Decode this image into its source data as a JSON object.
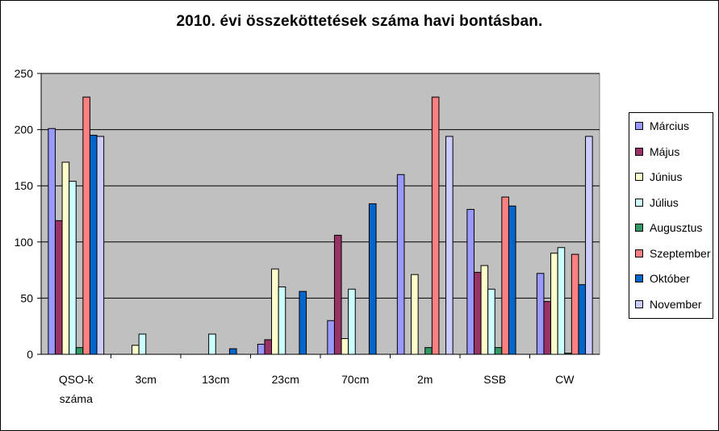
{
  "chart_data": {
    "type": "bar",
    "title": "2010. évi összeköttetések száma havi bontásban.",
    "categories": [
      [
        "QSO-k",
        "száma"
      ],
      [
        "3cm"
      ],
      [
        "13cm"
      ],
      [
        "23cm"
      ],
      [
        "70cm"
      ],
      [
        "2m"
      ],
      [
        "SSB"
      ],
      [
        "CW"
      ]
    ],
    "ylim": [
      0,
      250
    ],
    "yticks": [
      0,
      50,
      100,
      150,
      200,
      250
    ],
    "grid": true,
    "legend_position": "right",
    "plot_background": "#c0c0c0",
    "series": [
      {
        "name": "Március",
        "color": "#9999ff",
        "values": [
          201,
          0,
          0,
          9,
          30,
          160,
          129,
          72
        ]
      },
      {
        "name": "Május",
        "color": "#993366",
        "values": [
          119,
          0,
          0,
          13,
          106,
          0,
          73,
          47
        ]
      },
      {
        "name": "Június",
        "color": "#ffffcc",
        "values": [
          171,
          8,
          0,
          76,
          14,
          71,
          79,
          90
        ]
      },
      {
        "name": "Július",
        "color": "#ccffff",
        "values": [
          154,
          18,
          18,
          60,
          58,
          0,
          58,
          95
        ]
      },
      {
        "name": "Augusztus",
        "color": "#339966",
        "values": [
          6,
          0,
          0,
          0,
          0,
          6,
          6,
          1
        ]
      },
      {
        "name": "Szeptember",
        "color": "#ff8080",
        "values": [
          229,
          0,
          0,
          0,
          0,
          229,
          140,
          89
        ]
      },
      {
        "name": "Október",
        "color": "#0066cc",
        "values": [
          195,
          0,
          5,
          56,
          134,
          0,
          132,
          62
        ]
      },
      {
        "name": "November",
        "color": "#ccccff",
        "values": [
          194,
          0,
          0,
          0,
          0,
          194,
          0,
          194
        ]
      }
    ]
  }
}
